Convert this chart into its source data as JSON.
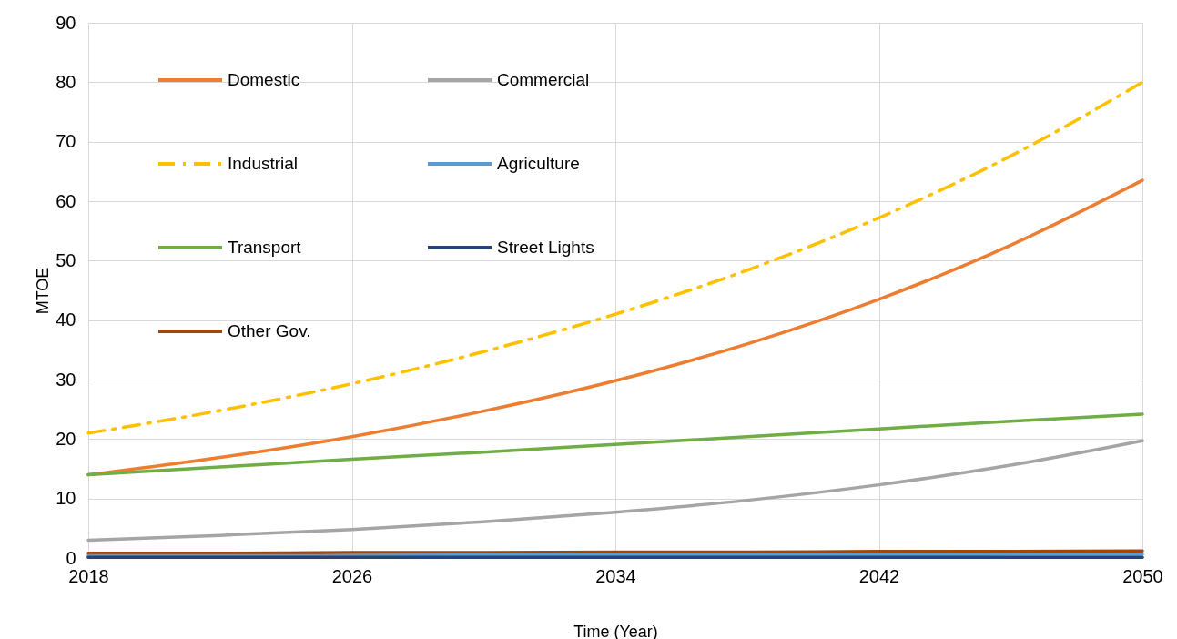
{
  "chart_data": {
    "type": "line",
    "xlabel": "Time (Year)",
    "ylabel": "MTOE",
    "x": [
      2018,
      2022,
      2026,
      2030,
      2034,
      2038,
      2042,
      2046,
      2050
    ],
    "xlim": [
      2018,
      2050
    ],
    "xticks": [
      2018,
      2026,
      2034,
      2042,
      2050
    ],
    "ylim": [
      0,
      90
    ],
    "yticks": [
      0,
      10,
      20,
      30,
      40,
      50,
      60,
      70,
      80,
      90
    ],
    "grid": true,
    "legend": "top left",
    "line_style": "solid",
    "series": [
      {
        "name": "Domestic",
        "color": "#ed7d31",
        "values": [
          14,
          16.9,
          20.4,
          24.7,
          29.8,
          36.0,
          43.5,
          52.6,
          63.5
        ]
      },
      {
        "name": "Industrial",
        "color": "#ffc000",
        "line_style": "dashed",
        "values": [
          21,
          24.8,
          29.3,
          34.7,
          41.0,
          48.4,
          57.2,
          67.6,
          80
        ]
      },
      {
        "name": "Transport",
        "color": "#70ad47",
        "values": [
          14,
          15.3,
          16.6,
          17.8,
          19.1,
          20.4,
          21.7,
          23.0,
          24.2
        ]
      },
      {
        "name": "Other Gov.",
        "color": "#9e480e",
        "values": [
          0.8,
          0.8,
          0.9,
          0.9,
          1.0,
          1.0,
          1.1,
          1.1,
          1.2
        ]
      },
      {
        "name": "Commercial",
        "color": "#a5a5a5",
        "values": [
          3,
          3.8,
          4.8,
          6.1,
          7.7,
          9.7,
          12.3,
          15.6,
          19.7
        ]
      },
      {
        "name": "Agriculture",
        "color": "#5b9bd5",
        "values": [
          0.4,
          0.4,
          0.4,
          0.5,
          0.5,
          0.5,
          0.5,
          0.6,
          0.6
        ]
      },
      {
        "name": "Street Lights",
        "color": "#264478",
        "values": [
          0.1,
          0.1,
          0.1,
          0.1,
          0.1,
          0.1,
          0.1,
          0.1,
          0.1
        ]
      }
    ]
  }
}
